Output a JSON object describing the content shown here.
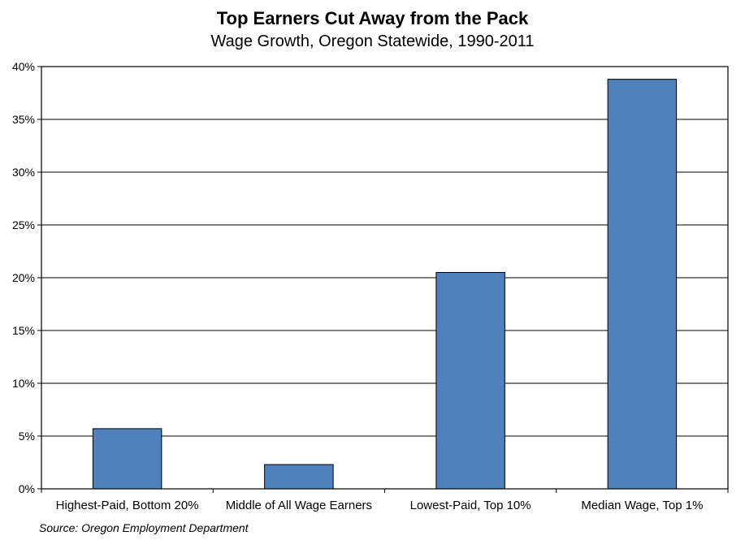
{
  "chart_data": {
    "type": "bar",
    "title": "Top Earners Cut Away from the Pack",
    "subtitle": "Wage Growth, Oregon Statewide, 1990-2011",
    "categories": [
      "Highest-Paid, Bottom 20%",
      "Middle of All Wage Earners",
      "Lowest-Paid, Top 10%",
      "Median Wage, Top 1%"
    ],
    "values": [
      5.7,
      2.3,
      20.5,
      38.8
    ],
    "ylim": [
      0,
      40
    ],
    "yticks": [
      "0%",
      "5%",
      "10%",
      "15%",
      "20%",
      "25%",
      "30%",
      "35%",
      "40%"
    ],
    "xlabel": "",
    "ylabel": "",
    "grid": true,
    "legend": "none",
    "bar_color": "#4F81BD",
    "source": "Source: Oregon Employment Department"
  }
}
